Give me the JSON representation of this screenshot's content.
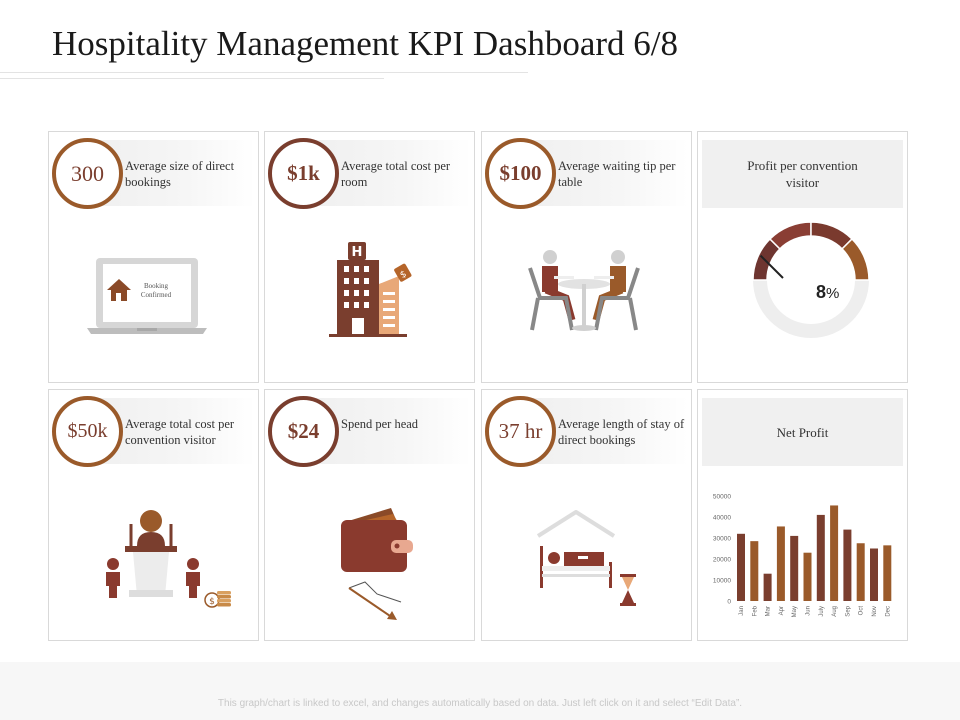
{
  "title": "Hospitality Management KPI Dashboard 6/8",
  "kpis": [
    {
      "value": "300",
      "label": "Average size of direct bookings"
    },
    {
      "value": "$1k",
      "label": "Average total cost per room"
    },
    {
      "value": "$100",
      "label": "Average waiting tip per table"
    },
    {
      "value": "$50k",
      "label": "Average total cost per convention visitor"
    },
    {
      "value": "$24",
      "label": "Spend per head"
    },
    {
      "value": "37 hr",
      "label": "Average length of stay of direct bookings"
    }
  ],
  "laptop_text": [
    "Booking",
    "Confirmed"
  ],
  "profit_card": {
    "title": "Profit per convention visitor",
    "percent": "8",
    "unit": "%",
    "gauge_value": 0.08
  },
  "net_profit_card": {
    "title": "Net Profit"
  },
  "chart_data": {
    "type": "bar",
    "title": "Net Profit",
    "categories": [
      "Jan",
      "Feb",
      "Mar",
      "Apr",
      "May",
      "Jun",
      "July",
      "Aug",
      "Sep",
      "Oct",
      "Nov",
      "Dec"
    ],
    "values": [
      32000,
      28500,
      13000,
      35500,
      31000,
      23000,
      41000,
      45500,
      34000,
      27500,
      25000,
      26500
    ],
    "ylim": [
      0,
      50000
    ],
    "yticks": [
      "0",
      "10000",
      "20000",
      "30000",
      "40000",
      "50000"
    ]
  },
  "colors": {
    "dark": "#7a3e2e",
    "light": "#9a5a2a"
  },
  "footer": "This graph/chart is linked to excel, and changes automatically based on data. Just left click on it and select “Edit Data”."
}
